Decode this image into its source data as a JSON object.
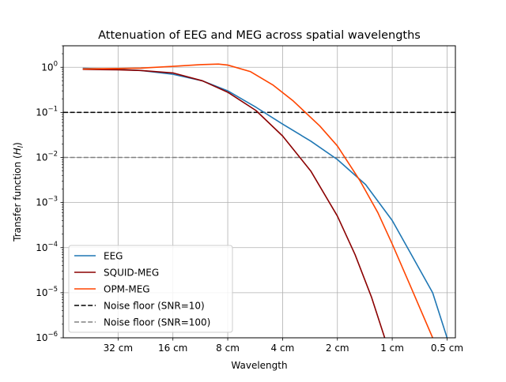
{
  "chart_data": {
    "type": "line",
    "title": "Attenuation of EEG and MEG across spatial wavelengths",
    "xlabel": "Wavelength",
    "ylabel_main": "Transfer function (",
    "ylabel_sym": "H",
    "ylabel_sub": "l",
    "ylabel_end": ")",
    "x_scale": "log2",
    "y_scale": "log10",
    "grid": true,
    "legend_placement": "lower-left",
    "xlim": [
      64,
      0.45
    ],
    "ylim": [
      1e-06,
      3
    ],
    "x_ticks": [
      {
        "value": 32,
        "label": "32 cm"
      },
      {
        "value": 16,
        "label": "16 cm"
      },
      {
        "value": 8,
        "label": "8 cm"
      },
      {
        "value": 4,
        "label": "4 cm"
      },
      {
        "value": 2,
        "label": "2 cm"
      },
      {
        "value": 1,
        "label": "1 cm"
      },
      {
        "value": 0.5,
        "label": "0.5 cm"
      }
    ],
    "y_ticks": [
      {
        "exp": 0,
        "base": "10",
        "sup": "0"
      },
      {
        "exp": -1,
        "base": "10",
        "sup": "−1"
      },
      {
        "exp": -2,
        "base": "10",
        "sup": "−2"
      },
      {
        "exp": -3,
        "base": "10",
        "sup": "−3"
      },
      {
        "exp": -4,
        "base": "10",
        "sup": "−4"
      },
      {
        "exp": -5,
        "base": "10",
        "sup": "−5"
      },
      {
        "exp": -6,
        "base": "10",
        "sup": "−6"
      }
    ],
    "series": [
      {
        "name": "EEG",
        "color": "#1f77b4",
        "style": "solid",
        "x": [
          50,
          32,
          24,
          16,
          11,
          8,
          5.6,
          4,
          2.8,
          2,
          1.4,
          1,
          0.8,
          0.6,
          0.5
        ],
        "y": [
          0.95,
          0.9,
          0.85,
          0.7,
          0.5,
          0.3,
          0.13,
          0.055,
          0.023,
          0.009,
          0.0025,
          0.0004,
          8e-05,
          1e-05,
          1e-06
        ]
      },
      {
        "name": "SQUID-MEG",
        "color": "#8b0000",
        "style": "solid",
        "x": [
          50,
          32,
          24,
          16,
          11,
          8,
          5.6,
          4,
          2.8,
          2,
          1.6,
          1.3,
          1.1
        ],
        "y": [
          0.9,
          0.88,
          0.85,
          0.75,
          0.5,
          0.28,
          0.11,
          0.03,
          0.005,
          0.0005,
          7e-05,
          8e-06,
          1e-06
        ]
      },
      {
        "name": "OPM-MEG",
        "color": "#ff4500",
        "style": "solid",
        "x": [
          50,
          32,
          24,
          16,
          11,
          9,
          8,
          6,
          4.5,
          3.5,
          2.5,
          2,
          1.5,
          1.2,
          1,
          0.8,
          0.6
        ],
        "y": [
          0.92,
          0.94,
          0.96,
          1.05,
          1.15,
          1.18,
          1.12,
          0.8,
          0.4,
          0.18,
          0.05,
          0.018,
          0.003,
          0.0006,
          0.00012,
          1.5e-05,
          1e-06
        ]
      },
      {
        "name": "Noise floor (SNR=10)",
        "color": "#000000",
        "style": "dashed",
        "hline": 0.1
      },
      {
        "name": "Noise floor (SNR=100)",
        "color": "#808080",
        "style": "dashed",
        "hline": 0.01
      }
    ]
  }
}
